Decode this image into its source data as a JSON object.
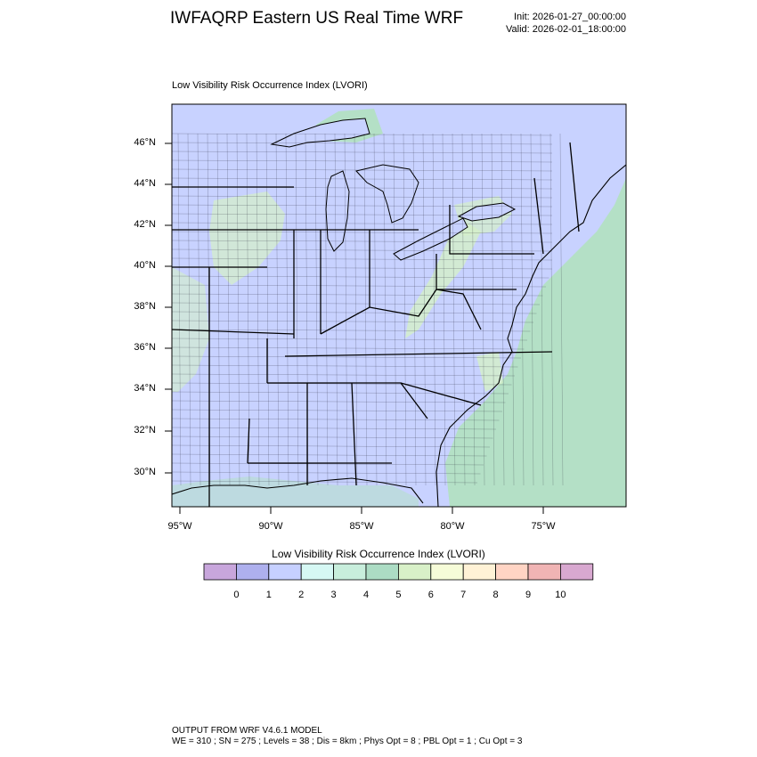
{
  "header": {
    "title": "IWFAQRP Eastern US Real Time WRF",
    "init_text": "Init: 2026-01-27_00:00:00",
    "valid_text": "Valid: 2026-02-01_18:00:00"
  },
  "map": {
    "field_title": "Low Visibility Risk Occurrence Index   (LVORI)",
    "lat_labels": [
      "46°N",
      "44°N",
      "42°N",
      "40°N",
      "38°N",
      "36°N",
      "34°N",
      "32°N",
      "30°N"
    ],
    "lon_labels": [
      "95°W",
      "90°W",
      "85°W",
      "80°W",
      "75°W"
    ],
    "background_color": "#c8d2ff",
    "coastal_color": "#b4e0c6",
    "highland_color": "#d4f0c8"
  },
  "colorbar": {
    "title": "Low Visibility Risk Occurrence Index  (LVORI)",
    "colors": [
      "#c8a6dc",
      "#aeb0ee",
      "#c6d0ff",
      "#d6f8f4",
      "#c8eedc",
      "#acdcc4",
      "#d8f0c8",
      "#f6fcd8",
      "#fff2d6",
      "#ffd4c4",
      "#f0b4b4",
      "#d8a8d0"
    ],
    "labels": [
      "0",
      "1",
      "2",
      "3",
      "4",
      "5",
      "6",
      "7",
      "8",
      "9",
      "10"
    ]
  },
  "footer": {
    "line1": "OUTPUT FROM WRF V4.6.1 MODEL",
    "line2": "WE = 310 ; SN = 275 ; Levels = 38 ; Dis = 8km ; Phys Opt = 8 ; PBL Opt = 1 ; Cu Opt = 3"
  }
}
